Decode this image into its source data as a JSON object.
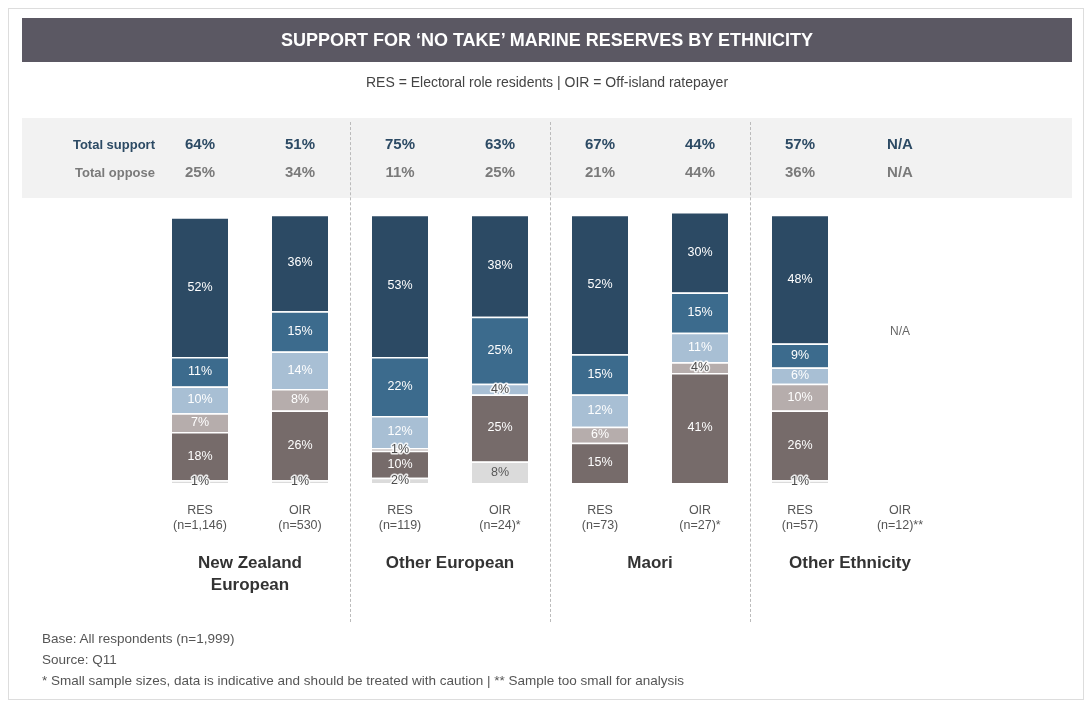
{
  "chart_data": {
    "type": "bar",
    "stacked": true,
    "legend": false,
    "grid": false,
    "tick_labels": "x",
    "title": "SUPPORT FOR ‘NO TAKE’ MARINE RESERVES BY ETHNICITY",
    "subtitle": "RES = Electoral role residents  |  OIR = Off-island ratepayer",
    "categories": [
      "RES (n=1,146)",
      "OIR (n=530)",
      "RES (n=119)",
      "OIR (n=24)*",
      "RES (n=73)",
      "OIR (n=27)*",
      "RES (n=57)",
      "OIR (n=12)**"
    ],
    "series": [
      {
        "color": "#dbdbdb",
        "values": [
          1,
          1,
          2,
          8,
          null,
          null,
          1,
          null
        ],
        "value_labels": [
          "1%",
          "1%",
          "2%",
          "8%",
          null,
          null,
          "1%",
          null
        ]
      },
      {
        "color": "#766b6a",
        "values": [
          18,
          26,
          10,
          25,
          15,
          41,
          26,
          null
        ],
        "value_labels": [
          "18%",
          "26%",
          "10%",
          "25%",
          "15%",
          "41%",
          "26%",
          null
        ]
      },
      {
        "color": "#b6adac",
        "values": [
          7,
          8,
          1,
          null,
          6,
          4,
          10,
          null
        ],
        "value_labels": [
          "7%",
          "8%",
          "1%",
          null,
          "6%",
          "4%",
          "10%",
          null
        ]
      },
      {
        "color": "#a8bfd4",
        "values": [
          10,
          14,
          12,
          4,
          12,
          11,
          6,
          null
        ],
        "value_labels": [
          "10%",
          "14%",
          "12%",
          "4%",
          "12%",
          "11%",
          "6%",
          null
        ]
      },
      {
        "color": "#3c6b8d",
        "values": [
          11,
          15,
          22,
          25,
          15,
          15,
          9,
          null
        ],
        "value_labels": [
          "11%",
          "15%",
          "22%",
          "25%",
          "15%",
          "15%",
          "9%",
          null
        ]
      },
      {
        "color": "#2c4a64",
        "values": [
          52,
          36,
          53,
          38,
          52,
          30,
          48,
          null
        ],
        "value_labels": [
          "52%",
          "36%",
          "53%",
          "38%",
          "52%",
          "30%",
          "48%",
          null
        ]
      }
    ],
    "annotations": [
      "Total support",
      "64%",
      "51%",
      "75%",
      "63%",
      "67%",
      "44%",
      "57%",
      "N/A",
      "Total oppose",
      "25%",
      "34%",
      "11%",
      "25%",
      "21%",
      "44%",
      "36%",
      "N/A",
      "N/A",
      "New Zealand European",
      "Other European",
      "Maori",
      "Other Ethnicity",
      "Base:  All respondents (n=1,999)",
      "Source: Q11",
      "* Small sample sizes, data is indicative and should be treated with caution | ** Sample too small for analysis"
    ]
  }
}
